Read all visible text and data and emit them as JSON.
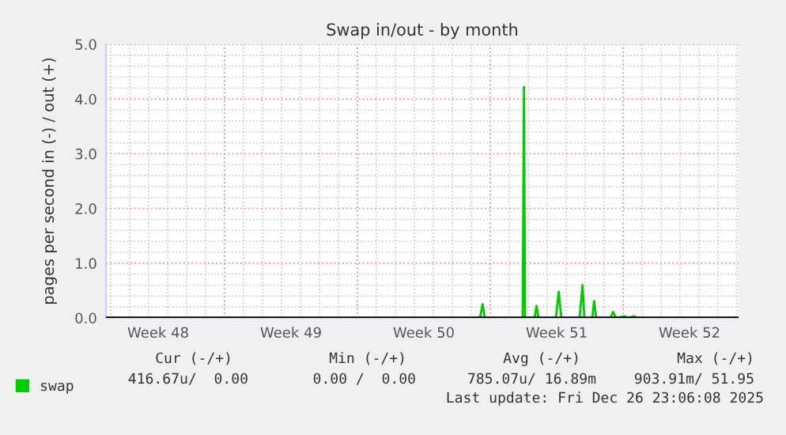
{
  "chart_data": {
    "type": "line",
    "title": "Swap in/out - by month",
    "ylabel": "pages per second in (-) / out (+)",
    "x": [
      "2025-11-24T18:00",
      "2025-12-14T11:00",
      "2025-12-14T14:24",
      "2025-12-14T17:00",
      "2025-12-16T17:00",
      "2025-12-16T18:40",
      "2025-12-16T20:00",
      "2025-12-17T08:00",
      "2025-12-17T10:30",
      "2025-12-17T13:00",
      "2025-12-18T11:00",
      "2025-12-18T14:36",
      "2025-12-18T18:00",
      "2025-12-19T17:00",
      "2025-12-19T20:38",
      "2025-12-19T23:00",
      "2025-12-20T09:00",
      "2025-12-20T11:20",
      "2025-12-20T14:00",
      "2025-12-21T08:00",
      "2025-12-21T11:20",
      "2025-12-21T15:00",
      "2025-12-22T02:00",
      "2025-12-22T06:00",
      "2025-12-22T14:00",
      "2025-12-22T17:00",
      "2025-12-28T02:00"
    ],
    "series": [
      {
        "name": "swap",
        "color": "#00cc00",
        "values": [
          0,
          0,
          0.25,
          0,
          0,
          4.22,
          0,
          0,
          0.22,
          0,
          0,
          0.48,
          0,
          0,
          0.6,
          0,
          0,
          0.31,
          0,
          0,
          0.11,
          0,
          0.03,
          0,
          0.03,
          0,
          0
        ]
      }
    ],
    "xlim": [
      "2025-11-24T18:00",
      "2025-12-28T02:00"
    ],
    "xticks": [
      {
        "value": "2025-11-27T12:00",
        "label": "Week 48"
      },
      {
        "value": "2025-12-01T00:00",
        "label": null
      },
      {
        "value": "2025-12-04T12:00",
        "label": "Week 49"
      },
      {
        "value": "2025-12-08T00:00",
        "label": null
      },
      {
        "value": "2025-12-11T12:00",
        "label": "Week 50"
      },
      {
        "value": "2025-12-15T00:00",
        "label": null
      },
      {
        "value": "2025-12-18T12:00",
        "label": "Week 51"
      },
      {
        "value": "2025-12-22T00:00",
        "label": null
      },
      {
        "value": "2025-12-25T12:00",
        "label": "Week 52"
      }
    ],
    "ylim": [
      0,
      5
    ],
    "yticks": [
      {
        "value": 0,
        "label": "0.0"
      },
      {
        "value": 1,
        "label": "1.0"
      },
      {
        "value": 2,
        "label": "2.0"
      },
      {
        "value": 3,
        "label": "3.0"
      },
      {
        "value": 4,
        "label": "4.0"
      },
      {
        "value": 5,
        "label": "5.0"
      }
    ],
    "ref_lines": [
      {
        "axis": "y",
        "value": 0,
        "color": "#000000"
      }
    ],
    "grid": true,
    "legend": "bottom",
    "marker": "none",
    "line_style": "solid",
    "annotations": [
      "Cur (-/+)",
      "Min (-/+)",
      "Avg (-/+)",
      "Max (-/+)",
      "416.67u/  0.00",
      "0.00 /  0.00",
      "785.07u/ 16.89m",
      "903.91m/ 51.95",
      "Last update: Fri Dec 26 23:06:08 2025"
    ]
  }
}
